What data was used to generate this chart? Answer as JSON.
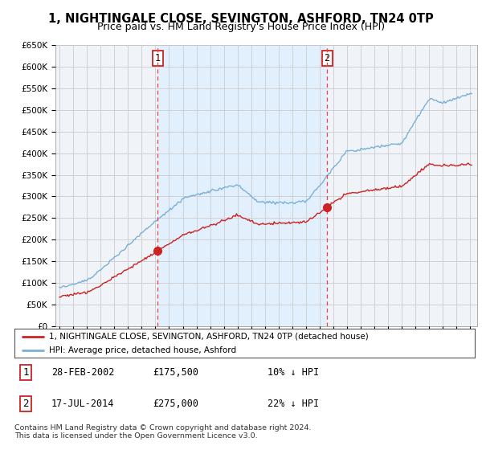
{
  "title": "1, NIGHTINGALE CLOSE, SEVINGTON, ASHFORD, TN24 0TP",
  "subtitle": "Price paid vs. HM Land Registry's House Price Index (HPI)",
  "ylim": [
    0,
    650000
  ],
  "yticks": [
    0,
    50000,
    100000,
    150000,
    200000,
    250000,
    300000,
    350000,
    400000,
    450000,
    500000,
    550000,
    600000,
    650000
  ],
  "ytick_labels": [
    "£0",
    "£50K",
    "£100K",
    "£150K",
    "£200K",
    "£250K",
    "£300K",
    "£350K",
    "£400K",
    "£450K",
    "£500K",
    "£550K",
    "£600K",
    "£650K"
  ],
  "xlim_start": 1994.7,
  "xlim_end": 2025.5,
  "purchase1_date": 2002.16,
  "purchase1_price": 175500,
  "purchase1_label": "1",
  "purchase2_date": 2014.54,
  "purchase2_price": 275000,
  "purchase2_label": "2",
  "hpi_color": "#7ab0d8",
  "price_color": "#cc2222",
  "shade_color": "#ddeeff",
  "vline_color": "#ee4444",
  "background_color": "#f0f4f8",
  "grid_color": "#cccccc",
  "legend_text1": "1, NIGHTINGALE CLOSE, SEVINGTON, ASHFORD, TN24 0TP (detached house)",
  "legend_text2": "HPI: Average price, detached house, Ashford",
  "table_row1": [
    "1",
    "28-FEB-2002",
    "£175,500",
    "10% ↓ HPI"
  ],
  "table_row2": [
    "2",
    "17-JUL-2014",
    "£275,000",
    "22% ↓ HPI"
  ],
  "footer": "Contains HM Land Registry data © Crown copyright and database right 2024.\nThis data is licensed under the Open Government Licence v3.0.",
  "title_fontsize": 10.5,
  "subtitle_fontsize": 9
}
